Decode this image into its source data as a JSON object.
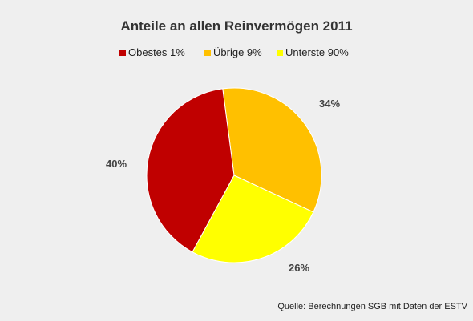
{
  "chart_data": {
    "type": "pie",
    "title": "Anteile an allen Reinvermögen 2011",
    "series": [
      {
        "name": "Obestes 1%",
        "value": 40,
        "label": "40%",
        "color": "#c00000"
      },
      {
        "name": "Übrige 9%",
        "value": 34,
        "label": "34%",
        "color": "#ffc000"
      },
      {
        "name": "Unterste 90%",
        "value": 26,
        "label": "26%",
        "color": "#ffff00"
      }
    ],
    "legend_position": "top",
    "source": "Quelle: Berechnungen SGB mit Daten der ESTV"
  }
}
